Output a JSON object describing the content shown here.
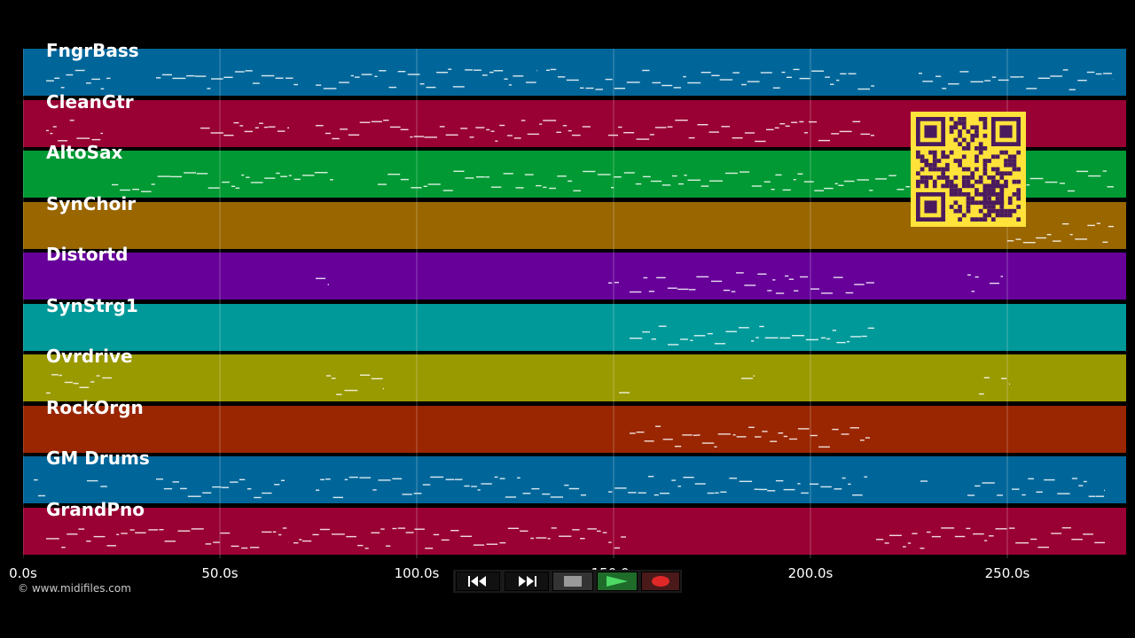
{
  "tracks": [
    {
      "name": "FngrBass",
      "color": "#006699"
    },
    {
      "name": "CleanGtr",
      "color": "#990033"
    },
    {
      "name": "AltoSax",
      "color": "#009933"
    },
    {
      "name": "SynChoir",
      "color": "#996600"
    },
    {
      "name": "Distortd",
      "color": "#660099"
    },
    {
      "name": "SynStrg1",
      "color": "#009999"
    },
    {
      "name": "Ovrdrive",
      "color": "#999900"
    },
    {
      "name": "RockOrgn",
      "color": "#992600"
    },
    {
      "name": "GM Drums",
      "color": "#006699"
    },
    {
      "name": "GrandPno",
      "color": "#990033"
    }
  ],
  "timeline": {
    "labels": [
      "0.0s",
      "50.0s",
      "100.0s",
      "150.0s",
      "200.0s",
      "250.0s"
    ]
  },
  "copyright": "© www.midifiles.com",
  "transport": {
    "rewind_icon": "rewind-icon",
    "forward_icon": "fast-forward-icon",
    "stop_icon": "stop-icon",
    "play_icon": "play-icon",
    "record_icon": "record-icon"
  },
  "qr_code": {
    "color": "#ffe23a",
    "module_color": "#4a1a5e"
  }
}
